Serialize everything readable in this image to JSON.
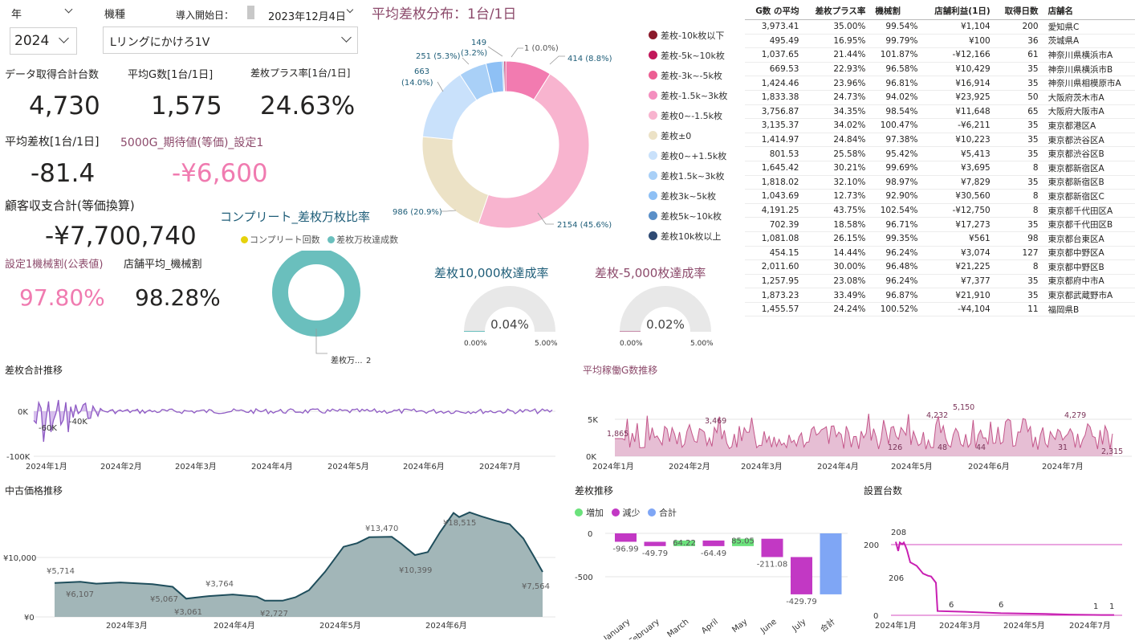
{
  "filters": {
    "year_label": "年",
    "year_value": "2024",
    "model_label": "機種",
    "model_value": "Lリングにかけろ1V",
    "start_label": "導入開始日：",
    "start_value": "2023年12月4日"
  },
  "kpis": {
    "total_units_label": "データ取得合計台数",
    "total_units": "4,730",
    "avg_g_label": "平均G数[1台/1日]",
    "avg_g": "1,575",
    "plus_rate_label": "差枚プラス率[1台/1日]",
    "plus_rate": "24.63%",
    "avg_diff_label": "平均差枚[1台/1日]",
    "avg_diff": "-81.4",
    "expect_label": "5000G_期待値(等価)_設定1",
    "expect": "-¥6,600",
    "balance_label": "顧客収支合計(等価換算)",
    "balance": "-¥7,700,740",
    "setting1_label": "設定1機械割(公表値)",
    "setting1": "97.80%",
    "store_avg_label": "店舗平均_機械割",
    "store_avg": "98.28%"
  },
  "donut": {
    "title": "平均差枚分布：1台/1日",
    "legend": [
      {
        "label": "差枚-10k枚以下",
        "color": "#8b1a2b"
      },
      {
        "label": "差枚-5k~10k枚",
        "color": "#c2185b"
      },
      {
        "label": "差枚-3k~-5k枚",
        "color": "#ec5f93"
      },
      {
        "label": "差枚-1.5k~3k枚",
        "color": "#f48fbf"
      },
      {
        "label": "差枚0~-1.5k枚",
        "color": "#f8b4cf"
      },
      {
        "label": "差枚±0",
        "color": "#ece2c6"
      },
      {
        "label": "差枚0~+1.5k枚",
        "color": "#c9e1fb"
      },
      {
        "label": "差枚1.5k~3k枚",
        "color": "#a9d0f7"
      },
      {
        "label": "差枚3k~5k枚",
        "color": "#8ec0f5"
      },
      {
        "label": "差枚5k~10k枚",
        "color": "#5a8fc8"
      },
      {
        "label": "差枚10k枚以上",
        "color": "#2f4a73"
      }
    ],
    "labels": {
      "a": "1 (0.0%)",
      "b": "414 (8.8%)",
      "c": "2154 (45.6%)",
      "d": "986 (20.9%)",
      "e1": "663",
      "e2": "(14.0%)",
      "f": "251 (5.3%)",
      "g1": "149",
      "g2": "(3.2%)"
    }
  },
  "complete": {
    "title": "コンプリート_差枚万枚比率",
    "legend1": "コンプリート回数",
    "legend2": "差枚万枚達成数",
    "color1": "#e6d20c",
    "color2": "#6abfbd",
    "slice_label": "差枚万...",
    "slice_value": "2"
  },
  "gauges": {
    "g1_title": "差枚10,000枚達成率",
    "g1_value": "0.04%",
    "g2_title": "差枚-5,000枚達成率",
    "g2_value": "0.02%",
    "min": "0.00%",
    "max": "5.00%"
  },
  "store_table": {
    "headers": [
      "G数 の平均",
      "差枚プラス率",
      "機械割",
      "店舗利益(1日)",
      "取得日数",
      "店舗名"
    ],
    "rows": [
      [
        "3,973.41",
        "35.00%",
        "99.54%",
        "¥1,104",
        "200",
        "愛知県C"
      ],
      [
        "495.49",
        "16.95%",
        "99.79%",
        "¥100",
        "36",
        "茨城県A"
      ],
      [
        "1,037.65",
        "21.44%",
        "101.87%",
        "-¥12,166",
        "61",
        "神奈川県横浜市A"
      ],
      [
        "669.53",
        "22.93%",
        "96.58%",
        "¥10,429",
        "35",
        "神奈川県横浜市B"
      ],
      [
        "1,424.46",
        "23.96%",
        "96.81%",
        "¥16,914",
        "35",
        "神奈川県相模原市A"
      ],
      [
        "1,833.38",
        "24.73%",
        "94.02%",
        "¥23,925",
        "50",
        "大阪府茨木市A"
      ],
      [
        "3,756.87",
        "34.35%",
        "98.54%",
        "¥11,648",
        "65",
        "大阪府大阪市A"
      ],
      [
        "3,135.37",
        "34.02%",
        "100.47%",
        "-¥6,211",
        "35",
        "東京都港区A"
      ],
      [
        "1,414.97",
        "24.84%",
        "97.38%",
        "¥10,223",
        "35",
        "東京都渋谷区A"
      ],
      [
        "801.53",
        "25.58%",
        "95.42%",
        "¥5,413",
        "35",
        "東京都渋谷区B"
      ],
      [
        "1,645.42",
        "30.21%",
        "99.69%",
        "¥3,695",
        "8",
        "東京都新宿区A"
      ],
      [
        "1,818.02",
        "32.10%",
        "98.97%",
        "¥7,829",
        "35",
        "東京都新宿区B"
      ],
      [
        "1,043.69",
        "12.73%",
        "92.90%",
        "¥30,560",
        "8",
        "東京都新宿区C"
      ],
      [
        "4,191.25",
        "43.75%",
        "102.54%",
        "-¥12,750",
        "8",
        "東京都千代田区A"
      ],
      [
        "702.39",
        "18.58%",
        "96.71%",
        "¥17,273",
        "35",
        "東京都千代田区B"
      ],
      [
        "1,081.08",
        "26.15%",
        "99.35%",
        "¥561",
        "98",
        "東京都台東区A"
      ],
      [
        "454.15",
        "14.44%",
        "96.24%",
        "¥3,074",
        "127",
        "東京都中野区A"
      ],
      [
        "2,011.60",
        "30.00%",
        "96.48%",
        "¥21,225",
        "8",
        "東京都中野区B"
      ],
      [
        "1,257.95",
        "23.08%",
        "96.24%",
        "¥7,377",
        "35",
        "東京都府中市A"
      ],
      [
        "1,873.23",
        "33.49%",
        "96.87%",
        "¥21,910",
        "35",
        "東京都武蔵野市A"
      ],
      [
        "1,455.57",
        "24.24%",
        "100.52%",
        "-¥4,104",
        "11",
        "福岡県B"
      ]
    ]
  },
  "diff_trend": {
    "title": "差枚合計推移",
    "yticks": [
      "0K",
      "-100K"
    ],
    "xticks": [
      "2024年1月",
      "2024年2月",
      "2024年3月",
      "2024年4月",
      "2024年5月",
      "2024年6月",
      "2024年7月"
    ],
    "labels": [
      "-60K",
      "-40K"
    ]
  },
  "g_trend": {
    "title": "平均稼働G数推移",
    "yticks": [
      "5K",
      "0K"
    ],
    "xticks": [
      "2024年1月",
      "2024年2月",
      "2024年3月",
      "2024年4月",
      "2024年5月",
      "2024年6月",
      "2024年7月"
    ],
    "labels": [
      "1,865",
      "3,469",
      "4,232",
      "5,150",
      "4,279",
      "2,315",
      "126",
      "48",
      "44",
      "31"
    ]
  },
  "price_trend": {
    "title": "中古価格推移",
    "yticks": [
      "¥10,000",
      "¥0"
    ],
    "xticks": [
      "2024年3月",
      "2024年4月",
      "2024年5月",
      "2024年6月"
    ],
    "labels": [
      "¥5,714",
      "¥6,107",
      "¥5,067",
      "¥3,764",
      "¥3,061",
      "¥2,727",
      "¥13,470",
      "¥10,399",
      "¥18,515",
      "¥7,564"
    ]
  },
  "waterfall": {
    "title": "差枚推移",
    "legend": [
      "増加",
      "減少",
      "合計"
    ],
    "colors": {
      "inc": "#6be27c",
      "dec": "#c238c4",
      "total": "#7fa6f5"
    },
    "yticks": [
      "0",
      "-500"
    ],
    "chart_data": {
      "type": "bar",
      "categories": [
        "January",
        "February",
        "March",
        "April",
        "May",
        "June",
        "July",
        "合計"
      ],
      "values": [
        -96.99,
        -49.79,
        64.22,
        -64.49,
        85.05,
        -211.08,
        -429.79,
        -702.87
      ],
      "labels": [
        "-96.99",
        "-49.79",
        "64.22",
        "-64.49",
        "85.05",
        "-211.08",
        "-429.79"
      ]
    }
  },
  "install": {
    "title": "設置台数",
    "yticks": [
      "200",
      "0"
    ],
    "xticks": [
      "2024年1月",
      "2024年3月",
      "2024年5月",
      "2024年7月"
    ],
    "labels": [
      "208",
      "206",
      "6",
      "6",
      "1",
      "1"
    ]
  }
}
